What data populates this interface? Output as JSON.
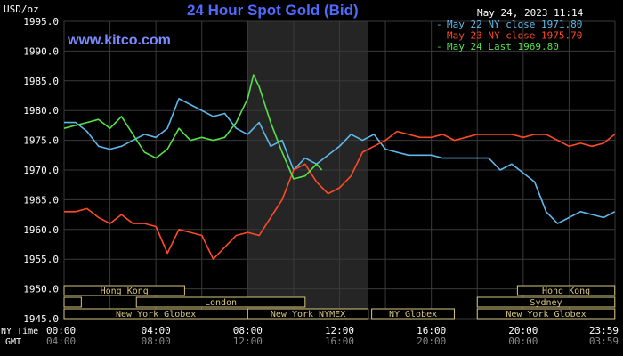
{
  "chart_data": {
    "type": "line",
    "title": "24 Hour Spot Gold (Bid)",
    "watermark": "www.kitco.com",
    "timestamp": "May 24, 2023 11:14",
    "ylabel": "USD/oz",
    "ylim": [
      1945,
      1995
    ],
    "yticks": [
      "1995.0",
      "1990.0",
      "1985.0",
      "1980.0",
      "1975.0",
      "1970.0",
      "1965.0",
      "1960.0",
      "1955.0",
      "1950.0",
      "1945.0"
    ],
    "xlim": [
      0,
      24
    ],
    "x_row1_label": "NY Time",
    "x_row2_label": "GMT",
    "xticks_ny": [
      "00:00",
      "04:00",
      "08:00",
      "12:00",
      "16:00",
      "20:00",
      "23:59"
    ],
    "xticks_gmt": [
      "04:00",
      "08:00",
      "12:00",
      "16:00",
      "20:00",
      "00:00",
      "03:59"
    ],
    "grid": true,
    "legend_position": "top-right",
    "colors": {
      "background": "#000000",
      "grid": "#3a3a3a",
      "axis_text": "#ffffff",
      "title": "#4f6bff",
      "watermark": "#7b8bff",
      "session_shade": "#252525",
      "session_box": "#d8c680"
    },
    "sessions": [
      {
        "label": "Hong Kong",
        "start": 0,
        "end": 5.25,
        "row": 1
      },
      {
        "label": "",
        "start": 0,
        "end": 0.75,
        "row": 2
      },
      {
        "label": "London",
        "start": 3.15,
        "end": 10.5,
        "row": 2
      },
      {
        "label": "New York Globex",
        "start": 0,
        "end": 8.0,
        "row": 3
      },
      {
        "label": "New York NYMEX",
        "start": 8.0,
        "end": 13.25,
        "row": 3
      },
      {
        "label": "NY Globex",
        "start": 13.4,
        "end": 17.0,
        "row": 3
      },
      {
        "label": "Sydney",
        "start": 18.0,
        "end": 23.99,
        "row": 2
      },
      {
        "label": "Hong Kong",
        "start": 19.75,
        "end": 23.99,
        "row": 1
      },
      {
        "label": "New York Globex",
        "start": 18.0,
        "end": 23.99,
        "row": 3
      }
    ],
    "shade": {
      "start": 8.0,
      "end": 13.25
    },
    "series": [
      {
        "name": "May 22 NY close 1971.80",
        "color": "#5fb8ea",
        "x": [
          0,
          0.5,
          1,
          1.5,
          2,
          2.5,
          3,
          3.5,
          4,
          4.5,
          5,
          5.5,
          6,
          6.5,
          7,
          7.5,
          8,
          8.5,
          9,
          9.5,
          10,
          10.5,
          11,
          11.5,
          12,
          12.5,
          13,
          13.5,
          14,
          14.5,
          15,
          15.5,
          16,
          16.5,
          17,
          17.5,
          18,
          18.5,
          19,
          19.5,
          20,
          20.5,
          21,
          21.5,
          22,
          22.5,
          23,
          23.5,
          23.99
        ],
        "y": [
          1978,
          1978,
          1976.5,
          1974,
          1973.5,
          1974,
          1975,
          1976,
          1975.5,
          1977,
          1982,
          1981,
          1980,
          1979,
          1979.5,
          1977,
          1976,
          1978,
          1974,
          1975,
          1970,
          1972,
          1971,
          1972.5,
          1974,
          1976,
          1975,
          1976,
          1973.5,
          1973,
          1972.5,
          1972.5,
          1972.5,
          1972,
          1972,
          1972,
          1972,
          1972,
          1970,
          1971,
          1969.5,
          1968,
          1963,
          1961,
          1962,
          1963,
          1962.5,
          1962,
          1963
        ]
      },
      {
        "name": "May 23 NY close 1975.70",
        "color": "#ff4a26",
        "x": [
          0,
          0.5,
          1,
          1.5,
          2,
          2.5,
          3,
          3.5,
          4,
          4.5,
          5,
          5.5,
          6,
          6.5,
          7,
          7.5,
          8,
          8.5,
          9,
          9.5,
          10,
          10.5,
          11,
          11.5,
          12,
          12.5,
          13,
          13.5,
          14,
          14.5,
          15,
          15.5,
          16,
          16.5,
          17,
          17.5,
          18,
          18.5,
          19,
          19.5,
          20,
          20.5,
          21,
          21.5,
          22,
          22.5,
          23,
          23.5,
          23.99
        ],
        "y": [
          1963,
          1963,
          1963.5,
          1962,
          1961,
          1962.5,
          1961,
          1961,
          1960.5,
          1956,
          1960,
          1959.5,
          1959,
          1955,
          1957,
          1959,
          1959.5,
          1959,
          1962,
          1965,
          1970,
          1971,
          1968,
          1966,
          1967,
          1969,
          1973,
          1974,
          1975,
          1976.5,
          1976,
          1975.5,
          1975.5,
          1976,
          1975,
          1975.5,
          1976,
          1976,
          1976,
          1976,
          1975.5,
          1976,
          1976,
          1975,
          1974,
          1974.5,
          1974,
          1974.5,
          1976
        ]
      },
      {
        "name": "May 24 Last 1969.80",
        "color": "#56e24a",
        "x": [
          0,
          0.5,
          1,
          1.5,
          2,
          2.5,
          3,
          3.5,
          4,
          4.5,
          5,
          5.5,
          6,
          6.5,
          7,
          7.5,
          8,
          8.25,
          8.5,
          9,
          9.5,
          10,
          10.5,
          11,
          11.23
        ],
        "y": [
          1977,
          1977.5,
          1978,
          1978.5,
          1977,
          1979,
          1976,
          1973,
          1972,
          1973.5,
          1977,
          1975,
          1975.5,
          1975,
          1975.5,
          1978,
          1982,
          1986,
          1984,
          1978,
          1973,
          1968.5,
          1969,
          1971,
          1970
        ]
      }
    ]
  }
}
